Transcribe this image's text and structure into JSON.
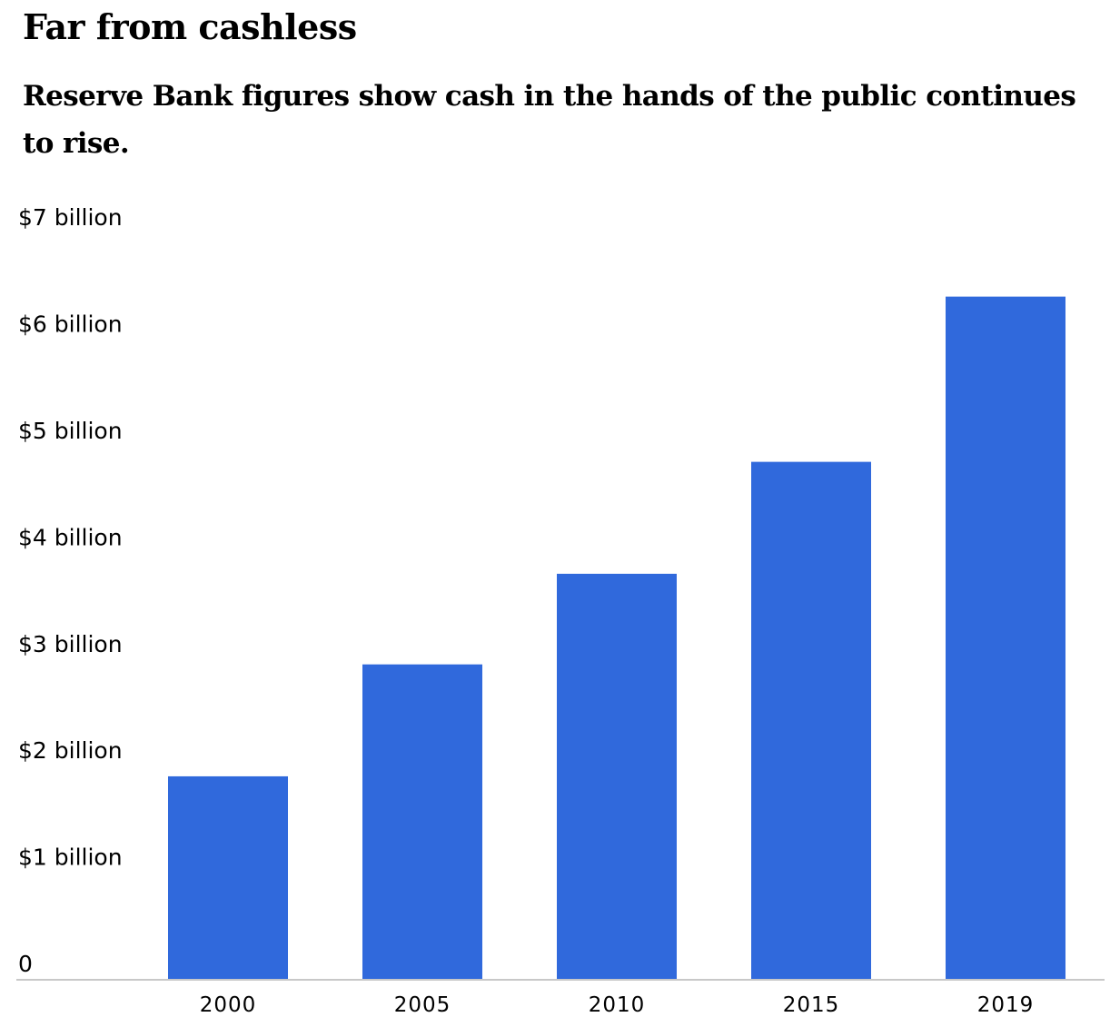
{
  "header": {
    "title": "Far from cashless",
    "subtitle": "Reserve Bank figures show cash in the hands of the public continues to rise."
  },
  "colors": {
    "bar": "#3069DC",
    "axis": "#C8C8C8",
    "text": "#000000"
  },
  "chart_data": {
    "type": "bar",
    "title": "Far from cashless",
    "subtitle": "Reserve Bank figures show cash in the hands of the public continues to rise.",
    "xlabel": "",
    "ylabel": "",
    "categories": [
      "2000",
      "2005",
      "2010",
      "2015",
      "2019"
    ],
    "values": [
      1.9,
      2.95,
      3.8,
      4.85,
      6.4
    ],
    "value_units": "billion dollars",
    "ylim": [
      0,
      7
    ],
    "yticks": [
      0,
      1,
      2,
      3,
      4,
      5,
      6,
      7
    ],
    "ytick_labels": [
      "0",
      "$1 billion",
      "$2 billion",
      "$3 billion",
      "$4 billion",
      "$5 billion",
      "$6 billion",
      "$7 billion"
    ],
    "grid": false,
    "legend": "none"
  }
}
